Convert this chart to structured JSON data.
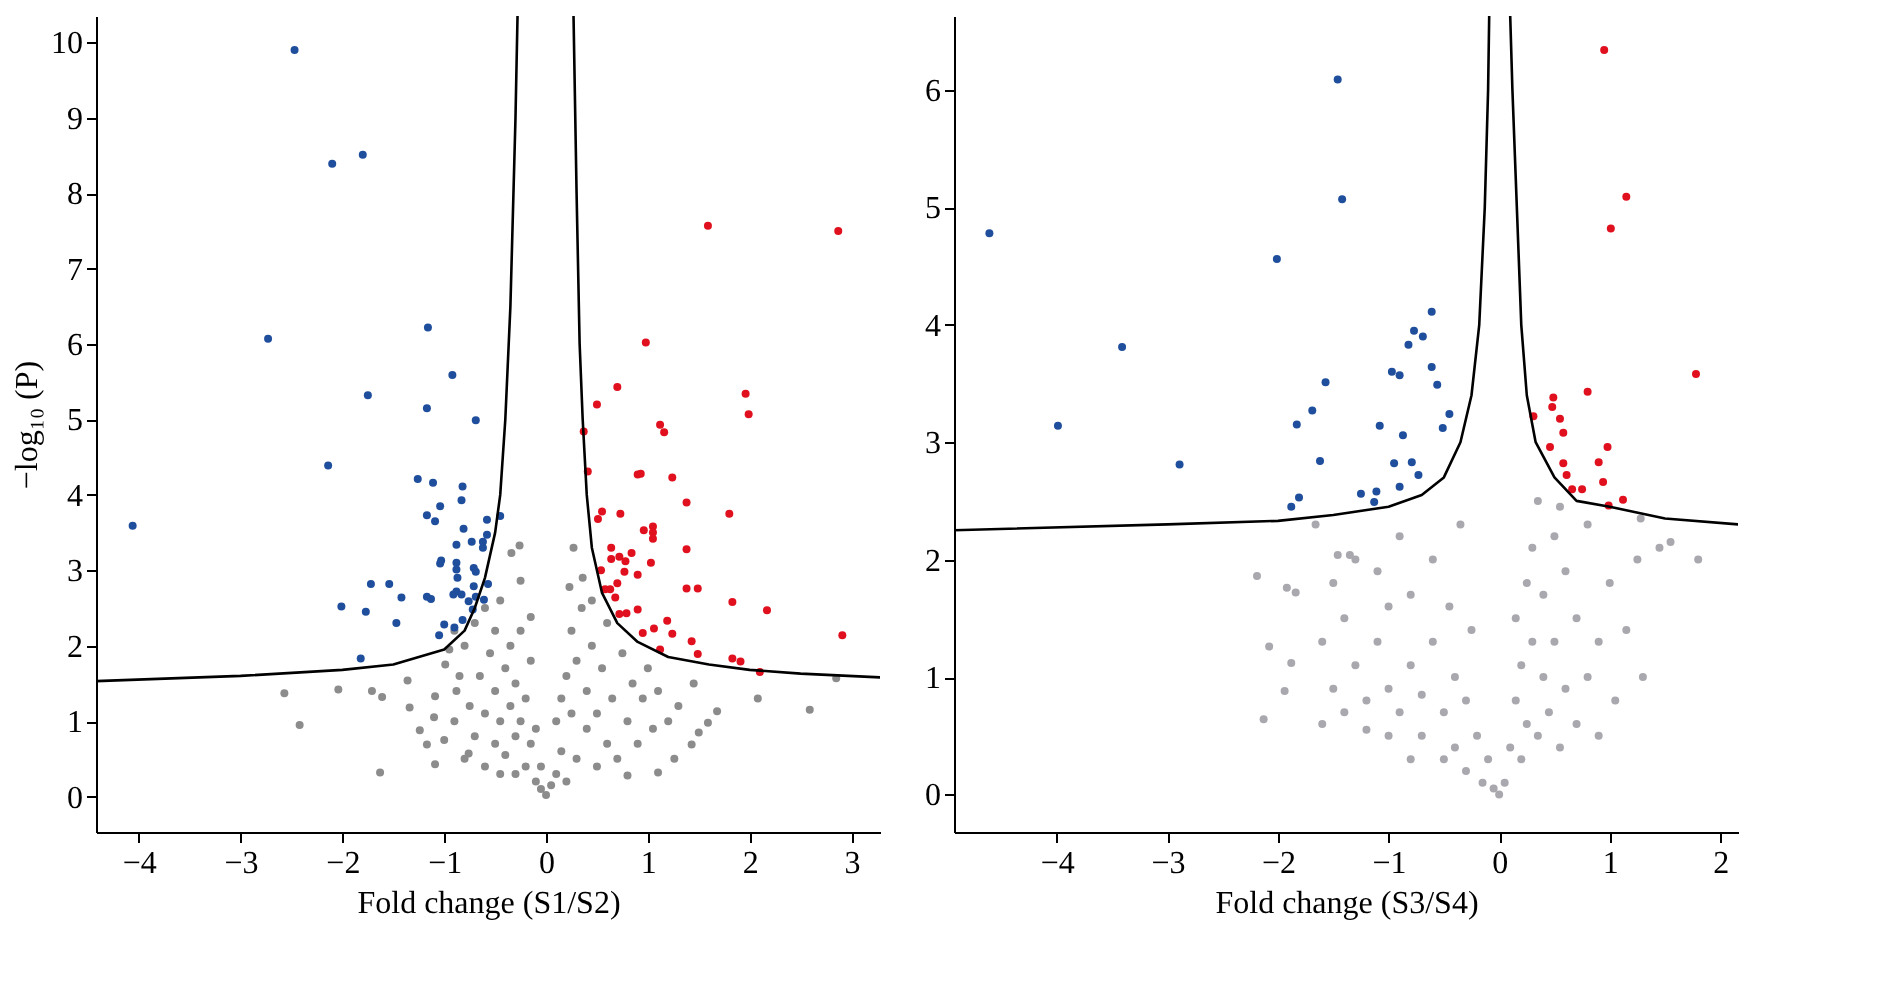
{
  "chart_data": [
    {
      "type": "scatter",
      "xlabel": "Fold change (S1/S2)",
      "ylabel": "−log₁₀ (P)",
      "xlim": [
        -4.42,
        3.28
      ],
      "ylim": [
        -0.47,
        10.35
      ],
      "xticks": [
        -4,
        -3,
        -2,
        -1,
        0,
        1,
        2,
        3
      ],
      "yticks": [
        0,
        1,
        2,
        3,
        4,
        5,
        6,
        7,
        8,
        9,
        10
      ],
      "grid": false,
      "marker": "circle",
      "series": [
        {
          "color": "#8c8c8c",
          "x": [
            -2.57,
            -2.04,
            -2.42,
            -1.71,
            -1.61,
            -1.63,
            -1.36,
            -1.34,
            -1.24,
            -1.17,
            -1.09,
            -1.1,
            -1.09,
            -0.99,
            -0.88,
            -0.15,
            -0.26,
            -0.34,
            -0.25,
            -0.76,
            -0.9,
            -0.85,
            -0.8,
            -0.8,
            -0.75,
            -0.7,
            -0.7,
            -0.65,
            -0.6,
            -0.6,
            -0.6,
            -0.55,
            -0.5,
            -0.5,
            -0.5,
            -0.45,
            -0.45,
            -0.45,
            -0.4,
            -0.4,
            -0.35,
            -0.35,
            -0.3,
            -0.3,
            -0.3,
            -0.25,
            -0.25,
            -0.2,
            -0.2,
            -0.15,
            -0.15,
            -0.1,
            -0.1,
            -0.05,
            -0.05,
            0,
            -1.0,
            -0.95,
            -0.9,
            2.59,
            2.08,
            2.85,
            1.68,
            1.59,
            1.43,
            1.26,
            1.1,
            0.8,
            0.27,
            0.36,
            0.23,
            0.1,
            0.1,
            0.15,
            0.2,
            0.2,
            0.25,
            0.25,
            0.3,
            0.3,
            0.35,
            0.4,
            0.4,
            0.45,
            0.5,
            0.5,
            0.55,
            0.6,
            0.6,
            0.65,
            0.7,
            0.75,
            0.8,
            0.85,
            0.9,
            0.95,
            1.0,
            1.05,
            1.1,
            1.2,
            1.3,
            1.45,
            0.05,
            0.15,
            0.45,
            1.5
          ],
          "values": [
            1.37,
            1.42,
            0.95,
            1.4,
            1.32,
            0.32,
            1.54,
            1.18,
            0.88,
            0.69,
            0.43,
            1.05,
            1.33,
            1.75,
            1.4,
            2.38,
            3.33,
            3.23,
            2.86,
            0.57,
            1.0,
            1.6,
            0.5,
            2.0,
            1.2,
            0.8,
            2.3,
            1.6,
            0.4,
            1.1,
            2.5,
            1.9,
            0.7,
            1.4,
            2.2,
            0.3,
            1.0,
            2.6,
            1.7,
            0.55,
            1.2,
            2.0,
            0.3,
            0.8,
            1.5,
            2.2,
            1.0,
            0.4,
            1.3,
            0.7,
            1.8,
            0.2,
            0.9,
            0.4,
            0.1,
            0.02,
            0.75,
            1.95,
            2.2,
            1.15,
            1.3,
            1.57,
            1.13,
            0.98,
            0.69,
            0.5,
            0.32,
            0.28,
            3.3,
            2.9,
            2.78,
            0.3,
            1.0,
            0.6,
            1.6,
            0.2,
            2.2,
            1.1,
            0.5,
            1.8,
            2.5,
            0.9,
            1.4,
            2.0,
            0.4,
            1.1,
            1.7,
            0.7,
            2.3,
            1.3,
            0.5,
            1.9,
            1.0,
            1.5,
            0.7,
            1.3,
            1.7,
            0.9,
            1.4,
            1.0,
            1.2,
            1.5,
            0.15,
            1.3,
            2.6,
            0.85
          ]
        },
        {
          "type": "scatter",
          "color": "#1f4e9c",
          "x": [
            -2.47,
            -2.1,
            -1.8,
            -2.73,
            -1.16,
            -0.92,
            -1.75,
            -1.17,
            -0.69,
            -2.14,
            -4.06,
            -1.26,
            -1.11,
            -0.82,
            -0.83,
            -1.17,
            -1.09,
            -1.04,
            -0.45,
            -0.58,
            -0.81,
            -0.58,
            -0.62,
            -0.73,
            -0.88,
            -0.62,
            -1.03,
            -0.88,
            -1.04,
            -0.71,
            -0.88,
            -0.69,
            -1.72,
            -1.54,
            -0.87,
            -0.71,
            -0.88,
            -0.57,
            -0.83,
            -0.91,
            -1.42,
            -1.17,
            -1.13,
            -0.69,
            -0.76,
            -0.61,
            -2.01,
            -1.77,
            -0.72,
            -1.47,
            -1.0,
            -0.82,
            -0.9,
            -1.05,
            -1.82
          ],
          "values": [
            9.9,
            8.39,
            8.51,
            6.07,
            6.22,
            5.59,
            5.32,
            5.15,
            4.99,
            4.39,
            3.59,
            4.21,
            4.16,
            4.11,
            3.93,
            3.73,
            3.65,
            3.85,
            3.72,
            3.67,
            3.55,
            3.47,
            3.38,
            3.38,
            3.34,
            3.3,
            3.13,
            3.1,
            3.09,
            3.03,
            3.01,
            2.98,
            2.82,
            2.82,
            2.9,
            2.79,
            2.72,
            2.82,
            2.68,
            2.68,
            2.64,
            2.65,
            2.62,
            2.65,
            2.59,
            2.61,
            2.52,
            2.45,
            2.48,
            2.3,
            2.28,
            2.34,
            2.24,
            2.14,
            1.83
          ]
        },
        {
          "type": "scatter",
          "color": "#e0101e",
          "x": [
            1.59,
            2.87,
            0.98,
            0.7,
            1.96,
            1.99,
            0.5,
            1.12,
            1.16,
            0.37,
            0.41,
            0.9,
            0.93,
            1.24,
            1.38,
            1.8,
            0.73,
            0.55,
            0.51,
            1.05,
            1.05,
            0.96,
            1.05,
            0.64,
            0.84,
            0.64,
            0.72,
            0.78,
            1.03,
            1.38,
            0.54,
            0.77,
            0.9,
            0.7,
            0.58,
            0.63,
            1.38,
            1.49,
            0.68,
            1.83,
            2.17,
            0.9,
            0.79,
            0.72,
            1.19,
            0.95,
            1.06,
            1.24,
            2.91,
            1.43,
            1.12,
            1.49,
            1.83,
            1.91,
            2.1
          ],
          "values": [
            7.57,
            7.5,
            6.02,
            5.43,
            5.34,
            5.07,
            5.2,
            4.93,
            4.83,
            4.84,
            4.31,
            4.27,
            4.28,
            4.23,
            3.9,
            3.75,
            3.75,
            3.78,
            3.68,
            3.58,
            3.5,
            3.53,
            3.42,
            3.3,
            3.23,
            3.15,
            3.18,
            3.12,
            3.1,
            3.28,
            3.0,
            2.98,
            2.94,
            2.83,
            2.75,
            2.75,
            2.76,
            2.76,
            2.64,
            2.58,
            2.47,
            2.48,
            2.43,
            2.42,
            2.33,
            2.17,
            2.23,
            2.16,
            2.14,
            2.06,
            1.95,
            1.89,
            1.83,
            1.79,
            1.65
          ]
        },
        {
          "type": "line",
          "marker": "none",
          "color": "#000000",
          "line_style": "solid",
          "x": [
            -4.42,
            -3,
            -2,
            -1.5,
            -1,
            -0.8,
            -0.7,
            -0.6,
            -0.5,
            -0.45,
            -0.4,
            -0.35,
            -0.3,
            -0.28
          ],
          "values": [
            1.53,
            1.6,
            1.68,
            1.75,
            1.95,
            2.2,
            2.5,
            2.9,
            3.5,
            4,
            5,
            6.5,
            9,
            10.35
          ]
        },
        {
          "type": "line",
          "marker": "none",
          "color": "#000000",
          "line_style": "solid",
          "x": [
            0.27,
            0.3,
            0.33,
            0.36,
            0.4,
            0.45,
            0.55,
            0.7,
            0.9,
            1.2,
            1.6,
            2,
            2.5,
            3.28
          ],
          "values": [
            10.35,
            8,
            6,
            5,
            4,
            3.3,
            2.7,
            2.3,
            2.05,
            1.85,
            1.75,
            1.68,
            1.63,
            1.58
          ]
        }
      ]
    },
    {
      "type": "scatter",
      "xlabel": "Fold change (S3/S4)",
      "xlim": [
        -4.93,
        2.16
      ],
      "ylim": [
        -0.32,
        6.63
      ],
      "xticks": [
        -4,
        -3,
        -2,
        -1,
        0,
        1,
        2
      ],
      "yticks": [
        0,
        1,
        2,
        3,
        4,
        5,
        6
      ],
      "grid": false,
      "marker": "circle",
      "series": [
        {
          "color": "#a8a8ae",
          "x": [
            -2.19,
            -1.66,
            -2.08,
            -2.13,
            -1.94,
            -1.88,
            -1.92,
            -1.84,
            -1.46,
            -1.35,
            -1.6,
            -1.6,
            -1.5,
            -1.5,
            -1.4,
            -1.4,
            -1.3,
            -1.3,
            -1.2,
            -1.2,
            -1.1,
            -1.1,
            -1.0,
            -1.0,
            -1.0,
            -0.9,
            -0.9,
            -0.8,
            -0.8,
            -0.8,
            -0.7,
            -0.7,
            -0.6,
            -0.6,
            -0.5,
            -0.5,
            -0.45,
            -0.4,
            -0.4,
            -0.35,
            -0.3,
            -0.3,
            -0.25,
            -0.2,
            -0.15,
            -0.1,
            -0.05,
            0,
            0.05,
            0.1,
            0.15,
            0.15,
            0.2,
            0.2,
            0.25,
            0.25,
            0.3,
            0.3,
            0.35,
            0.35,
            0.4,
            0.4,
            0.45,
            0.5,
            0.5,
            0.55,
            0.6,
            0.6,
            0.7,
            0.7,
            0.8,
            0.8,
            0.9,
            0.9,
            1.0,
            1.05,
            1.15,
            1.25,
            1.3,
            1.45,
            1.55,
            1.8,
            1.28,
            0.55
          ],
          "values": [
            1.86,
            2.3,
            1.26,
            0.64,
            0.88,
            1.12,
            1.76,
            1.72,
            2.04,
            2.04,
            0.6,
            1.3,
            0.9,
            1.8,
            0.7,
            1.5,
            1.1,
            2.0,
            0.55,
            0.8,
            1.3,
            1.9,
            0.5,
            0.9,
            1.6,
            2.2,
            0.7,
            0.3,
            1.1,
            1.7,
            0.5,
            0.85,
            2.0,
            1.3,
            0.3,
            0.7,
            1.6,
            0.4,
            1.0,
            2.3,
            0.2,
            0.8,
            1.4,
            0.5,
            0.1,
            0.3,
            0.05,
            0.0,
            0.1,
            0.4,
            0.8,
            1.5,
            0.3,
            1.1,
            1.8,
            0.6,
            2.1,
            1.3,
            0.5,
            2.5,
            1.0,
            1.7,
            0.7,
            2.2,
            1.3,
            0.4,
            0.9,
            1.9,
            1.5,
            0.6,
            2.3,
            1.0,
            1.3,
            0.5,
            1.8,
            0.8,
            1.4,
            2.0,
            1.0,
            2.1,
            2.15,
            2.0,
            2.35,
            2.45
          ]
        },
        {
          "type": "scatter",
          "color": "#1f4e9c",
          "x": [
            -4.61,
            -1.46,
            -1.42,
            -2.01,
            -3.41,
            -3.99,
            -2.89,
            -1.57,
            -1.69,
            -1.83,
            -1.08,
            -1.62,
            -1.81,
            -1.88,
            -1.25,
            -1.11,
            -1.13,
            -0.61,
            -0.77,
            -0.69,
            -0.82,
            -0.97,
            -0.9,
            -0.61,
            -0.56,
            -0.45,
            -0.51,
            -0.87,
            -0.95,
            -0.79,
            -0.73,
            -0.9
          ],
          "values": [
            4.78,
            6.09,
            5.07,
            4.56,
            3.81,
            3.14,
            2.81,
            3.51,
            3.27,
            3.15,
            3.14,
            2.84,
            2.53,
            2.45,
            2.56,
            2.58,
            2.49,
            4.11,
            3.95,
            3.9,
            3.83,
            3.6,
            3.57,
            3.64,
            3.49,
            3.24,
            3.12,
            3.06,
            2.82,
            2.83,
            2.72,
            2.62
          ]
        },
        {
          "type": "scatter",
          "color": "#e0101e",
          "x": [
            0.95,
            1.15,
            1.01,
            1.78,
            0.8,
            0.49,
            0.48,
            0.31,
            0.55,
            0.58,
            0.46,
            0.98,
            0.58,
            0.9,
            0.61,
            0.94,
            0.66,
            0.75,
            0.99,
            1.12
          ],
          "values": [
            6.34,
            5.09,
            4.82,
            3.58,
            3.43,
            3.38,
            3.3,
            3.22,
            3.2,
            3.08,
            2.96,
            2.96,
            2.82,
            2.83,
            2.72,
            2.66,
            2.6,
            2.6,
            2.46,
            2.51
          ]
        },
        {
          "type": "line",
          "marker": "none",
          "color": "#000000",
          "line_style": "solid",
          "x": [
            -4.93,
            -3,
            -2,
            -1.5,
            -1,
            -0.7,
            -0.5,
            -0.35,
            -0.25,
            -0.18,
            -0.13,
            -0.1,
            -0.09
          ],
          "values": [
            2.25,
            2.3,
            2.33,
            2.38,
            2.45,
            2.55,
            2.7,
            3,
            3.4,
            4,
            5,
            6,
            6.63
          ]
        },
        {
          "type": "line",
          "marker": "none",
          "color": "#000000",
          "line_style": "solid",
          "x": [
            0.1,
            0.12,
            0.16,
            0.2,
            0.25,
            0.33,
            0.5,
            0.7,
            1,
            1.5,
            2.16
          ],
          "values": [
            6.63,
            6,
            5,
            4,
            3.4,
            3,
            2.7,
            2.5,
            2.45,
            2.35,
            2.3
          ]
        }
      ]
    }
  ]
}
